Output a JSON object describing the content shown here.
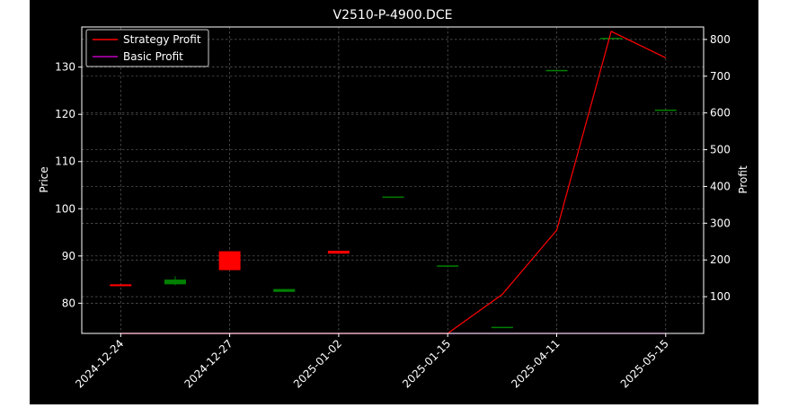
{
  "chart_data": {
    "type": "candlestick+line",
    "title": "V2510-P-4900.DCE",
    "ylabel": "Price",
    "y2label": "Profit",
    "ylim": [
      73.6,
      138.5
    ],
    "y2lim": [
      0,
      834
    ],
    "yticks": [
      80,
      90,
      100,
      110,
      120,
      130
    ],
    "y2ticks": [
      100,
      200,
      300,
      400,
      500,
      600,
      700,
      800
    ],
    "xtick_labels": [
      "2024-12-24",
      "2024-12-27",
      "2025-01-02",
      "2025-01-15",
      "2025-04-11",
      "2025-05-15"
    ],
    "xtick_indices": [
      0,
      2,
      4,
      6,
      8,
      10
    ],
    "grid": true,
    "legend_position": "upper-left",
    "colors": {
      "up": "#008000",
      "down": "#ff0000",
      "strategy": "#ff0000",
      "basic": "#bf00bf",
      "grid": "#b0b0b0"
    },
    "candles": [
      {
        "i": 0,
        "open": 84.0,
        "close": 83.6,
        "high": 84.0,
        "low": 83.6
      },
      {
        "i": 1,
        "open": 84.0,
        "close": 85.0,
        "high": 85.7,
        "low": 83.8
      },
      {
        "i": 2,
        "open": 91.0,
        "close": 87.0,
        "high": 91.0,
        "low": 87.0
      },
      {
        "i": 3,
        "open": 82.4,
        "close": 83.0,
        "high": 83.0,
        "low": 82.4
      },
      {
        "i": 4,
        "open": 91.1,
        "close": 90.5,
        "high": 91.1,
        "low": 90.5
      },
      {
        "i": 5,
        "open": 102.6,
        "close": 102.6,
        "high": 102.6,
        "low": 102.6
      },
      {
        "i": 6,
        "open": 88.0,
        "close": 88.0,
        "high": 88.0,
        "low": 88.0
      },
      {
        "i": 7,
        "open": 75.0,
        "close": 75.0,
        "high": 75.0,
        "low": 75.0
      },
      {
        "i": 8,
        "open": 129.4,
        "close": 129.4,
        "high": 129.4,
        "low": 129.4
      },
      {
        "i": 9,
        "open": 136.2,
        "close": 136.2,
        "high": 136.2,
        "low": 136.2
      },
      {
        "i": 10,
        "open": 121.0,
        "close": 121.0,
        "high": 121.0,
        "low": 121.0
      }
    ],
    "series": [
      {
        "name": "Strategy Profit",
        "axis": "right",
        "color": "#ff0000",
        "x": [
          0,
          1,
          2,
          3,
          4,
          5,
          6,
          7,
          8,
          9,
          10
        ],
        "values": [
          0,
          0,
          0,
          0,
          0,
          0,
          0,
          106,
          281,
          822,
          750
        ]
      },
      {
        "name": "Basic Profit",
        "axis": "right",
        "color": "#bf00bf",
        "x": [
          0,
          1,
          2,
          3,
          4,
          5,
          6,
          7,
          8,
          9,
          10
        ],
        "values": [
          0,
          0,
          0,
          0,
          0,
          0,
          0,
          0,
          0,
          0,
          0
        ]
      }
    ]
  }
}
